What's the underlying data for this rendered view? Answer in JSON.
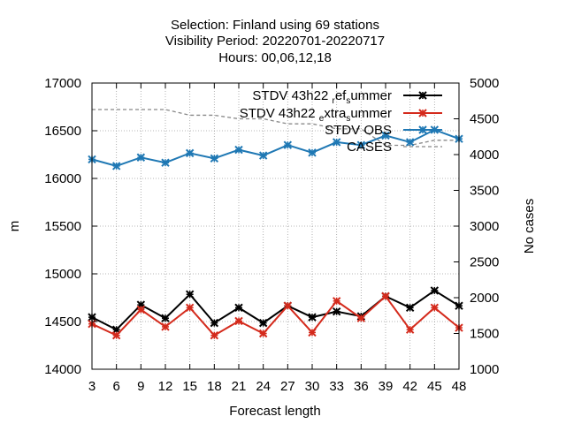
{
  "chart_data": {
    "type": "line",
    "title_lines": [
      "Selection: Finland using    69 stations",
      "Visibility   Period: 20220701-20220717",
      "Hours:  00,06,12,18"
    ],
    "xlabel": "Forecast length",
    "ylabel": "m",
    "y2label": "No cases",
    "x": [
      3,
      6,
      9,
      12,
      15,
      18,
      21,
      24,
      27,
      30,
      33,
      36,
      39,
      42,
      45,
      48
    ],
    "xlim": [
      3,
      48
    ],
    "ylim": [
      14000,
      17000
    ],
    "y2lim": [
      1000,
      5000
    ],
    "yticks": [
      14000,
      14500,
      15000,
      15500,
      16000,
      16500,
      17000
    ],
    "y2ticks": [
      1000,
      1500,
      2000,
      2500,
      3000,
      3500,
      4000,
      4500,
      5000
    ],
    "grid": true,
    "legend_position": "top-right",
    "series": [
      {
        "name": "STDV 43h22",
        "name_sub1": "r",
        "name_mid": "ef",
        "name_sub2": "s",
        "name_end": "ummer",
        "color": "#000000",
        "axis": "y",
        "marker": "x",
        "values": [
          14545,
          14415,
          14675,
          14535,
          14785,
          14485,
          14645,
          14485,
          14665,
          14545,
          14605,
          14555,
          14765,
          14645,
          14825,
          14665
        ]
      },
      {
        "name": "STDV 43h22",
        "name_sub1": "e",
        "name_mid": "xtra",
        "name_sub2": "s",
        "name_end": "ummer",
        "color": "#d42a1c",
        "axis": "y",
        "marker": "x",
        "values": [
          14475,
          14355,
          14625,
          14445,
          14645,
          14355,
          14505,
          14375,
          14665,
          14385,
          14715,
          14535,
          14765,
          14415,
          14645,
          14435
        ]
      },
      {
        "name": "STDV OBS",
        "color": "#1f78b4",
        "axis": "y",
        "marker": "x",
        "values": [
          16200,
          16130,
          16220,
          16165,
          16265,
          16210,
          16300,
          16240,
          16350,
          16270,
          16380,
          16350,
          16450,
          16380,
          16510,
          16415
        ]
      },
      {
        "name": "CASES",
        "color": "#888888",
        "axis": "y2",
        "dashed": true,
        "values": [
          4630,
          4630,
          4630,
          4630,
          4550,
          4550,
          4500,
          4500,
          4430,
          4430,
          4360,
          4360,
          4130,
          4130,
          4200,
          4200
        ]
      }
    ]
  }
}
